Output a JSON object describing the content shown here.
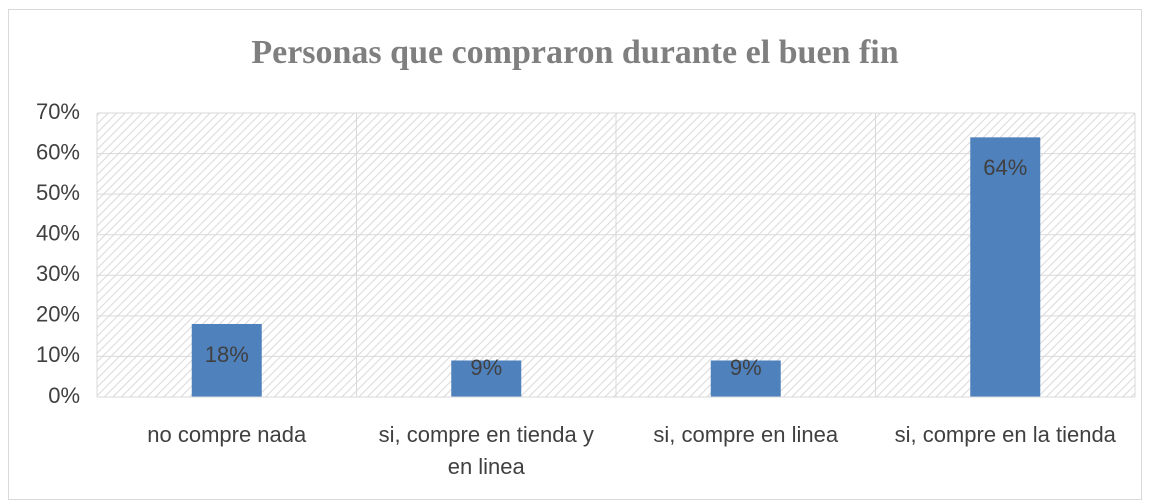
{
  "chart_data": {
    "type": "bar",
    "title": "Personas que compraron durante el buen fin",
    "categories": [
      "no compre nada",
      "si, compre en tienda y en linea",
      "si, compre en linea",
      "si, compre en la tienda"
    ],
    "values": [
      18,
      9,
      9,
      64
    ],
    "value_labels": [
      "18%",
      "9%",
      "9%",
      "64%"
    ],
    "color": "#4f81bd",
    "ylim": [
      0,
      70
    ],
    "yticks": [
      {
        "value": 0,
        "label": "0%"
      },
      {
        "value": 10,
        "label": "10%"
      },
      {
        "value": 20,
        "label": "20%"
      },
      {
        "value": 30,
        "label": "30%"
      },
      {
        "value": 40,
        "label": "40%"
      },
      {
        "value": 50,
        "label": "50%"
      },
      {
        "value": 60,
        "label": "60%"
      },
      {
        "value": 70,
        "label": "70%"
      }
    ],
    "grid": true
  }
}
